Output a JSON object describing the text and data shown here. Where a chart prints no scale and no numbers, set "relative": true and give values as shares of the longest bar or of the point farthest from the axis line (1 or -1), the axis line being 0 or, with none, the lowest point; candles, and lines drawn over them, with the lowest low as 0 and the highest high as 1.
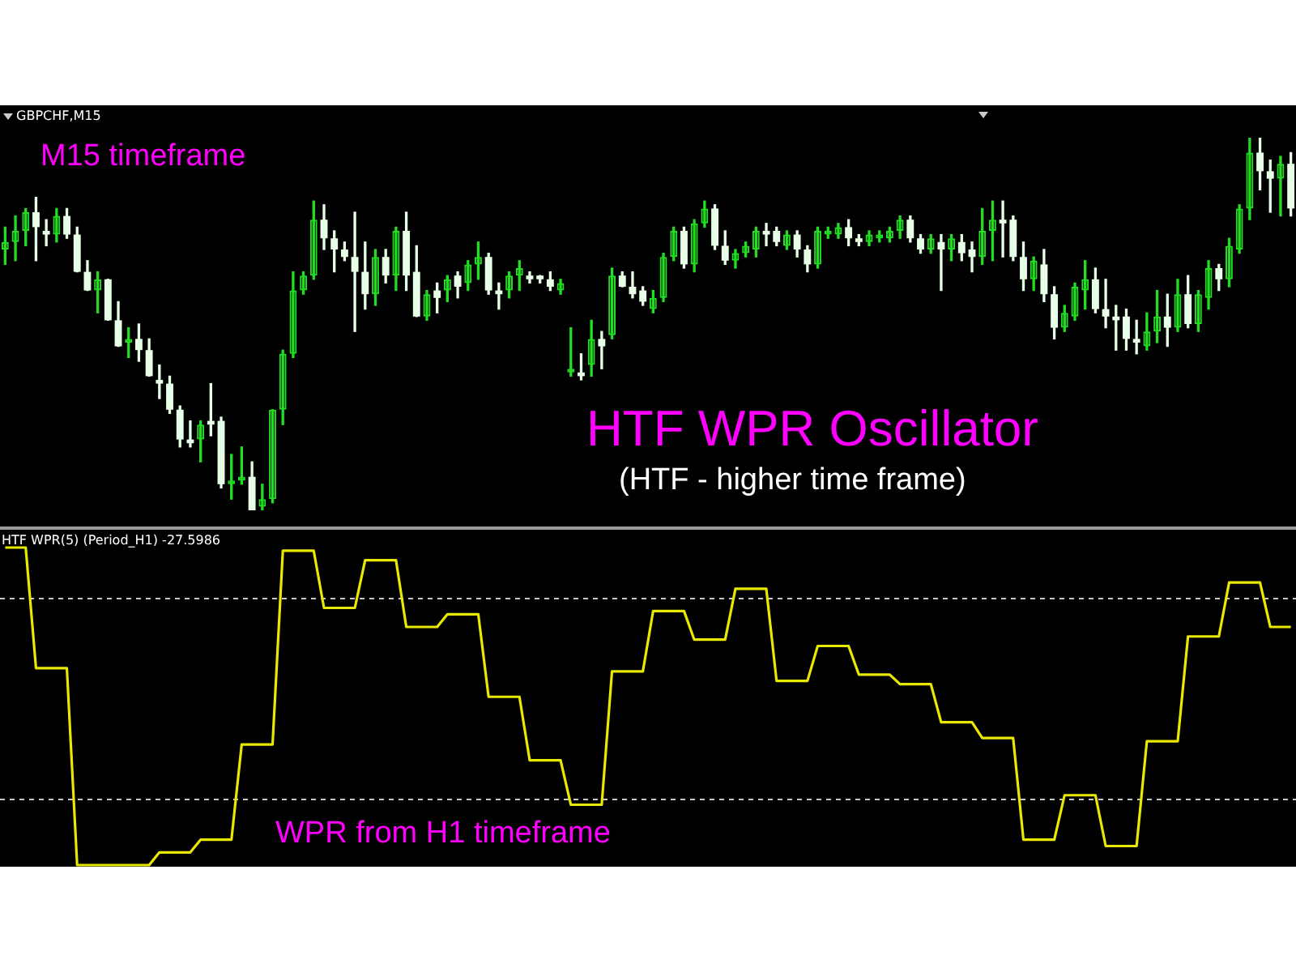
{
  "chart_data": [
    {
      "type": "candlestick",
      "title": "GBPCHF,M15",
      "relative": true,
      "colors": [
        "#22dd22",
        "#22dd22",
        "#22dd22",
        "#e6ffe6",
        "#e6ffe6",
        "#22dd22",
        "#e6ffe6",
        "#e6ffe6",
        "#e6ffe6",
        "#22dd22",
        "#e6ffe6",
        "#e6ffe6",
        "#22dd22",
        "#e6ffe6",
        "#e6ffe6",
        "#e6ffe6",
        "#e6ffe6",
        "#e6ffe6",
        "#e6ffe6",
        "#22dd22",
        "#e6ffe6",
        "#e6ffe6",
        "#22dd22",
        "#22dd22",
        "#e6ffe6",
        "#22dd22",
        "#22dd22",
        "#22dd22",
        "#22dd22",
        "#22dd22",
        "#22dd22",
        "#e6ffe6",
        "#e6ffe6",
        "#e6ffe6",
        "#e6ffe6",
        "#e6ffe6",
        "#22dd22",
        "#e6ffe6",
        "#22dd22",
        "#e6ffe6",
        "#e6ffe6",
        "#22dd22",
        "#e6ffe6",
        "#22dd22",
        "#e6ffe6",
        "#22dd22",
        "#22dd22",
        "#e6ffe6",
        "#e6ffe6",
        "#22dd22",
        "#22dd22",
        "#e6ffe6",
        "#e6ffe6",
        "#e6ffe6",
        "#22dd22",
        "#22dd22",
        "#e6ffe6",
        "#22dd22",
        "#e6ffe6",
        "#22dd22",
        "#e6ffe6",
        "#e6ffe6",
        "#e6ffe6",
        "#22dd22",
        "#22dd22",
        "#22dd22",
        "#e6ffe6",
        "#22dd22",
        "#22dd22",
        "#e6ffe6",
        "#e6ffe6",
        "#22dd22",
        "#22dd22",
        "#22dd22",
        "#e6ffe6",
        "#e6ffe6",
        "#22dd22",
        "#e6ffe6",
        "#e6ffe6",
        "#22dd22",
        "#22dd22",
        "#22dd22",
        "#e6ffe6",
        "#e6ffe6",
        "#22dd22",
        "#22dd22",
        "#22dd22",
        "#22dd22",
        "#e6ffe6",
        "#e6ffe6",
        "#22dd22",
        "#e6ffe6",
        "#22dd22",
        "#e6ffe6",
        "#e6ffe6",
        "#22dd22",
        "#22dd22",
        "#e6ffe6",
        "#e6ffe6",
        "#e6ffe6",
        "#22dd22",
        "#e6ffe6",
        "#e6ffe6",
        "#22dd22",
        "#22dd22",
        "#22dd22",
        "#e6ffe6",
        "#e6ffe6",
        "#e6ffe6",
        "#e6ffe6",
        "#e6ffe6",
        "#22dd22",
        "#22dd22",
        "#e6ffe6",
        "#22dd22",
        "#e6ffe6",
        "#22dd22",
        "#22dd22",
        "#e6ffe6",
        "#22dd22",
        "#22dd22",
        "#22dd22",
        "#e6ffe6",
        "#e6ffe6",
        "#22dd22",
        "#e6ffe6"
      ],
      "annotations": [
        "M15 timeframe",
        "HTF WPR Oscillator",
        "(HTF - higher time frame)"
      ],
      "categories": [
        null,
        null,
        null,
        null,
        null,
        null,
        null,
        null,
        null,
        null,
        null,
        null,
        null,
        null,
        null,
        null,
        null,
        null,
        null,
        null,
        null,
        null,
        null,
        null,
        null,
        null,
        null,
        null,
        null,
        null,
        null,
        null,
        null,
        null,
        null,
        null,
        null,
        null,
        null,
        null,
        null,
        null,
        null,
        null,
        null,
        null,
        null,
        null,
        null,
        null,
        null,
        null,
        null,
        null,
        null,
        null,
        null,
        null,
        null,
        null,
        null,
        null,
        null,
        null,
        null,
        null,
        null,
        null,
        null,
        null,
        null,
        null,
        null,
        null,
        null,
        null,
        null,
        null,
        null,
        null,
        null,
        null,
        null,
        null,
        null,
        null,
        null,
        null,
        null,
        null,
        null,
        null,
        null,
        null,
        null,
        null,
        null,
        null,
        null,
        null,
        null,
        null,
        null,
        null,
        null,
        null,
        null,
        null,
        null,
        null,
        null,
        null,
        null,
        null,
        null,
        null,
        null,
        null,
        null,
        null,
        null,
        null,
        null,
        null,
        null,
        null
      ],
      "ohlc": [
        [
          0.7,
          0.76,
          0.66,
          0.72
        ],
        [
          0.72,
          0.79,
          0.67,
          0.75
        ],
        [
          0.75,
          0.81,
          0.71,
          0.8
        ],
        [
          0.8,
          0.84,
          0.67,
          0.76
        ],
        [
          0.75,
          0.78,
          0.71,
          0.74
        ],
        [
          0.74,
          0.81,
          0.72,
          0.79
        ],
        [
          0.79,
          0.81,
          0.73,
          0.74
        ],
        [
          0.74,
          0.76,
          0.64,
          0.64
        ],
        [
          0.64,
          0.67,
          0.59,
          0.59
        ],
        [
          0.59,
          0.64,
          0.53,
          0.62
        ],
        [
          0.62,
          0.62,
          0.51,
          0.51
        ],
        [
          0.51,
          0.56,
          0.44,
          0.44
        ],
        [
          0.45,
          0.49,
          0.41,
          0.46
        ],
        [
          0.46,
          0.5,
          0.4,
          0.43
        ],
        [
          0.43,
          0.46,
          0.36,
          0.36
        ],
        [
          0.35,
          0.39,
          0.3,
          0.34
        ],
        [
          0.34,
          0.36,
          0.26,
          0.27
        ],
        [
          0.27,
          0.28,
          0.17,
          0.19
        ],
        [
          0.19,
          0.24,
          0.17,
          0.18
        ],
        [
          0.19,
          0.24,
          0.13,
          0.23
        ],
        [
          0.24,
          0.34,
          0.2,
          0.23
        ],
        [
          0.24,
          0.25,
          0.06,
          0.07
        ],
        [
          0.07,
          0.15,
          0.03,
          0.08
        ],
        [
          0.08,
          0.17,
          0.07,
          0.09
        ],
        [
          0.09,
          0.13,
          0.0,
          0.0
        ],
        [
          0.01,
          0.07,
          0.0,
          0.03
        ],
        [
          0.03,
          0.27,
          0.02,
          0.27
        ],
        [
          0.27,
          0.43,
          0.23,
          0.42
        ],
        [
          0.42,
          0.64,
          0.41,
          0.59
        ],
        [
          0.59,
          0.64,
          0.58,
          0.63
        ],
        [
          0.63,
          0.83,
          0.62,
          0.78
        ],
        [
          0.78,
          0.82,
          0.7,
          0.73
        ],
        [
          0.73,
          0.75,
          0.64,
          0.7
        ],
        [
          0.7,
          0.72,
          0.67,
          0.68
        ],
        [
          0.68,
          0.8,
          0.48,
          0.64
        ],
        [
          0.64,
          0.72,
          0.54,
          0.58
        ],
        [
          0.58,
          0.7,
          0.55,
          0.68
        ],
        [
          0.68,
          0.7,
          0.61,
          0.63
        ],
        [
          0.63,
          0.76,
          0.59,
          0.75
        ],
        [
          0.75,
          0.8,
          0.59,
          0.63
        ],
        [
          0.64,
          0.71,
          0.52,
          0.52
        ],
        [
          0.52,
          0.59,
          0.51,
          0.58
        ],
        [
          0.59,
          0.61,
          0.53,
          0.57
        ],
        [
          0.59,
          0.63,
          0.56,
          0.62
        ],
        [
          0.63,
          0.64,
          0.57,
          0.6
        ],
        [
          0.61,
          0.67,
          0.59,
          0.66
        ],
        [
          0.66,
          0.72,
          0.62,
          0.68
        ],
        [
          0.68,
          0.69,
          0.58,
          0.59
        ],
        [
          0.59,
          0.61,
          0.54,
          0.58
        ],
        [
          0.59,
          0.64,
          0.57,
          0.63
        ],
        [
          0.63,
          0.67,
          0.59,
          0.65
        ],
        [
          0.63,
          0.64,
          0.61,
          0.62
        ],
        [
          0.63,
          0.63,
          0.61,
          0.62
        ],
        [
          0.62,
          0.64,
          0.59,
          0.6
        ],
        [
          0.59,
          0.62,
          0.58,
          0.61
        ],
        [
          0.37,
          0.49,
          0.36,
          0.38
        ],
        [
          0.37,
          0.42,
          0.35,
          0.36
        ],
        [
          0.39,
          0.51,
          0.36,
          0.46
        ],
        [
          0.46,
          0.48,
          0.38,
          0.44
        ],
        [
          0.47,
          0.65,
          0.46,
          0.63
        ],
        [
          0.63,
          0.64,
          0.6,
          0.6
        ],
        [
          0.6,
          0.64,
          0.57,
          0.58
        ],
        [
          0.59,
          0.6,
          0.55,
          0.56
        ],
        [
          0.54,
          0.59,
          0.53,
          0.57
        ],
        [
          0.57,
          0.69,
          0.56,
          0.68
        ],
        [
          0.68,
          0.76,
          0.67,
          0.75
        ],
        [
          0.75,
          0.76,
          0.65,
          0.66
        ],
        [
          0.66,
          0.78,
          0.64,
          0.77
        ],
        [
          0.77,
          0.83,
          0.76,
          0.81
        ],
        [
          0.81,
          0.82,
          0.7,
          0.71
        ],
        [
          0.71,
          0.75,
          0.66,
          0.67
        ],
        [
          0.67,
          0.7,
          0.65,
          0.69
        ],
        [
          0.69,
          0.72,
          0.68,
          0.71
        ],
        [
          0.7,
          0.76,
          0.68,
          0.75
        ],
        [
          0.75,
          0.77,
          0.71,
          0.74
        ],
        [
          0.75,
          0.76,
          0.71,
          0.72
        ],
        [
          0.71,
          0.75,
          0.7,
          0.74
        ],
        [
          0.74,
          0.75,
          0.68,
          0.7
        ],
        [
          0.7,
          0.71,
          0.64,
          0.66
        ],
        [
          0.66,
          0.76,
          0.65,
          0.75
        ],
        [
          0.74,
          0.76,
          0.73,
          0.75
        ],
        [
          0.74,
          0.77,
          0.73,
          0.76
        ],
        [
          0.76,
          0.78,
          0.71,
          0.73
        ],
        [
          0.73,
          0.74,
          0.71,
          0.72
        ],
        [
          0.72,
          0.75,
          0.71,
          0.74
        ],
        [
          0.73,
          0.75,
          0.72,
          0.74
        ],
        [
          0.73,
          0.76,
          0.72,
          0.75
        ],
        [
          0.75,
          0.79,
          0.73,
          0.78
        ],
        [
          0.78,
          0.79,
          0.72,
          0.73
        ],
        [
          0.73,
          0.74,
          0.69,
          0.7
        ],
        [
          0.7,
          0.74,
          0.69,
          0.73
        ],
        [
          0.72,
          0.74,
          0.59,
          0.7
        ],
        [
          0.7,
          0.74,
          0.67,
          0.73
        ],
        [
          0.72,
          0.74,
          0.67,
          0.69
        ],
        [
          0.7,
          0.72,
          0.64,
          0.68
        ],
        [
          0.68,
          0.81,
          0.66,
          0.75
        ],
        [
          0.75,
          0.83,
          0.67,
          0.78
        ],
        [
          0.78,
          0.83,
          0.68,
          0.77
        ],
        [
          0.78,
          0.79,
          0.67,
          0.68
        ],
        [
          0.68,
          0.72,
          0.59,
          0.62
        ],
        [
          0.62,
          0.68,
          0.59,
          0.67
        ],
        [
          0.66,
          0.7,
          0.56,
          0.58
        ],
        [
          0.58,
          0.6,
          0.46,
          0.49
        ],
        [
          0.49,
          0.55,
          0.48,
          0.53
        ],
        [
          0.52,
          0.61,
          0.51,
          0.6
        ],
        [
          0.59,
          0.67,
          0.54,
          0.62
        ],
        [
          0.62,
          0.65,
          0.53,
          0.54
        ],
        [
          0.54,
          0.62,
          0.49,
          0.52
        ],
        [
          0.52,
          0.55,
          0.43,
          0.51
        ],
        [
          0.52,
          0.54,
          0.43,
          0.46
        ],
        [
          0.46,
          0.51,
          0.42,
          0.45
        ],
        [
          0.44,
          0.53,
          0.43,
          0.48
        ],
        [
          0.48,
          0.59,
          0.45,
          0.52
        ],
        [
          0.52,
          0.58,
          0.44,
          0.49
        ],
        [
          0.49,
          0.62,
          0.48,
          0.58
        ],
        [
          0.58,
          0.63,
          0.49,
          0.5
        ],
        [
          0.5,
          0.59,
          0.48,
          0.58
        ],
        [
          0.57,
          0.67,
          0.54,
          0.65
        ],
        [
          0.65,
          0.66,
          0.59,
          0.62
        ],
        [
          0.62,
          0.73,
          0.6,
          0.71
        ],
        [
          0.7,
          0.82,
          0.69,
          0.81
        ],
        [
          0.81,
          1.0,
          0.78,
          0.96
        ],
        [
          0.96,
          1.0,
          0.86,
          0.91
        ],
        [
          0.91,
          0.94,
          0.8,
          0.89
        ],
        [
          0.89,
          0.95,
          0.79,
          0.93
        ],
        [
          0.93,
          0.96,
          0.79,
          0.81
        ]
      ]
    },
    {
      "type": "line",
      "title": "HTF WPR(5) (Period_H1) -27.5986",
      "relative": true,
      "color": "#e8e800",
      "marker": "none",
      "annotations": [
        "WPR from H1 timeframe"
      ],
      "ref_lines": [
        {
          "axis": "y",
          "value": 0.84,
          "color": "#c8c8c8",
          "line_style": "dashed"
        },
        {
          "axis": "y",
          "value": 0.21,
          "color": "#c8c8c8",
          "line_style": "dashed"
        }
      ],
      "categories": [
        null,
        null,
        null,
        null,
        null,
        null,
        null,
        null,
        null,
        null,
        null,
        null,
        null,
        null,
        null,
        null,
        null,
        null,
        null,
        null,
        null,
        null,
        null,
        null,
        null,
        null,
        null,
        null,
        null,
        null,
        null,
        null,
        null,
        null,
        null,
        null,
        null,
        null,
        null,
        null,
        null,
        null,
        null,
        null,
        null,
        null,
        null,
        null,
        null,
        null,
        null,
        null,
        null,
        null,
        null,
        null,
        null,
        null,
        null,
        null,
        null,
        null,
        null,
        null,
        null,
        null,
        null,
        null,
        null,
        null,
        null,
        null,
        null,
        null,
        null,
        null,
        null,
        null,
        null,
        null,
        null,
        null,
        null,
        null,
        null,
        null,
        null,
        null,
        null,
        null,
        null,
        null,
        null,
        null,
        null,
        null,
        null,
        null,
        null,
        null,
        null,
        null,
        null,
        null,
        null,
        null,
        null,
        null,
        null,
        null,
        null,
        null,
        null,
        null,
        null,
        null,
        null,
        null,
        null,
        null,
        null,
        null,
        null,
        null,
        null,
        null
      ],
      "values": [
        1.0,
        1.0,
        1.0,
        0.62,
        0.62,
        0.62,
        0.62,
        0,
        0,
        0,
        0,
        0,
        0,
        0,
        0,
        0.04,
        0.04,
        0.04,
        0.04,
        0.08,
        0.08,
        0.08,
        0.08,
        0.38,
        0.38,
        0.38,
        0.38,
        0.99,
        0.99,
        0.99,
        0.99,
        0.81,
        0.81,
        0.81,
        0.81,
        0.96,
        0.96,
        0.96,
        0.96,
        0.75,
        0.75,
        0.75,
        0.75,
        0.79,
        0.79,
        0.79,
        0.79,
        0.53,
        0.53,
        0.53,
        0.53,
        0.33,
        0.33,
        0.33,
        0.33,
        0.19,
        0.19,
        0.19,
        0.19,
        0.61,
        0.61,
        0.61,
        0.61,
        0.8,
        0.8,
        0.8,
        0.8,
        0.71,
        0.71,
        0.71,
        0.71,
        0.87,
        0.87,
        0.87,
        0.87,
        0.58,
        0.58,
        0.58,
        0.58,
        0.69,
        0.69,
        0.69,
        0.69,
        0.6,
        0.6,
        0.6,
        0.6,
        0.57,
        0.57,
        0.57,
        0.57,
        0.45,
        0.45,
        0.45,
        0.45,
        0.4,
        0.4,
        0.4,
        0.4,
        0.08,
        0.08,
        0.08,
        0.08,
        0.22,
        0.22,
        0.22,
        0.22,
        0.06,
        0.06,
        0.06,
        0.06,
        0.39,
        0.39,
        0.39,
        0.39,
        0.72,
        0.72,
        0.72,
        0.72,
        0.89,
        0.89,
        0.89,
        0.89,
        0.75,
        0.75,
        0.75
      ]
    }
  ]
}
